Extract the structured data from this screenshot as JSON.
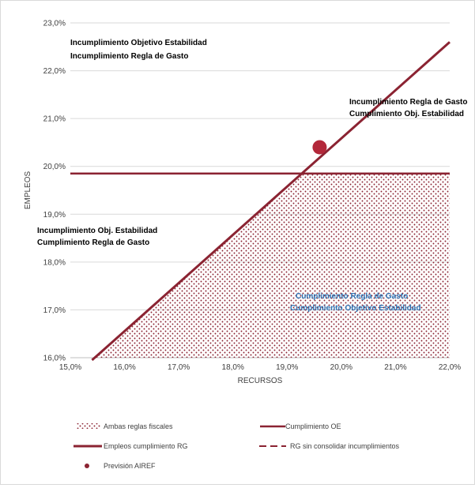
{
  "chart_data": {
    "type": "line",
    "xlabel": "RECURSOS",
    "ylabel": "EMPLEOS",
    "xlim": [
      15.0,
      22.0
    ],
    "ylim": [
      16.0,
      23.0
    ],
    "x_ticks": [
      "15,0%",
      "16,0%",
      "17,0%",
      "18,0%",
      "19,0%",
      "20,0%",
      "21,0%",
      "22,0%"
    ],
    "y_ticks": [
      "16,0%",
      "17,0%",
      "18,0%",
      "19,0%",
      "20,0%",
      "21,0%",
      "22,0%",
      "23,0%"
    ],
    "grid": "horizontal",
    "colors": {
      "series": "#8b2332",
      "blue_text": "#2e75b6"
    },
    "series": [
      {
        "name": "Cumplimiento OE",
        "style": "solid",
        "x": [
          15.4,
          22.0
        ],
        "y": [
          15.95,
          22.6
        ]
      },
      {
        "name": "Empleos cumplimiento RG",
        "style": "solid",
        "x": [
          15.0,
          22.0
        ],
        "y": [
          19.85,
          19.85
        ]
      },
      {
        "name": "Previsión AIREF",
        "style": "marker",
        "x": [
          19.6
        ],
        "y": [
          20.4
        ]
      },
      {
        "name": "Ambas reglas fiscales",
        "style": "dotted-area"
      }
    ],
    "legend_entries": [
      "Ambas reglas fiscales",
      "Cumplimiento OE",
      "Empleos cumplimiento RG",
      "RG sin consolidar incumplimientos",
      "Previsión AIREF"
    ],
    "legend_placement": "bottom",
    "annotations": {
      "top_left": [
        "Incumplimiento Objetivo Estabilidad",
        "Incumplimiento Regla de Gasto"
      ],
      "top_right": [
        "Incumplimiento Regla de Gasto",
        "Cumplimiento Obj. Estabilidad"
      ],
      "middle_left": [
        "Incumplimiento Obj. Estabilidad",
        "Cumplimiento Regla de Gasto"
      ],
      "bottom_right": [
        "Cumplimiento Regla de Gasto",
        "Cumplimiento Objetivo Estabilidad"
      ]
    }
  }
}
